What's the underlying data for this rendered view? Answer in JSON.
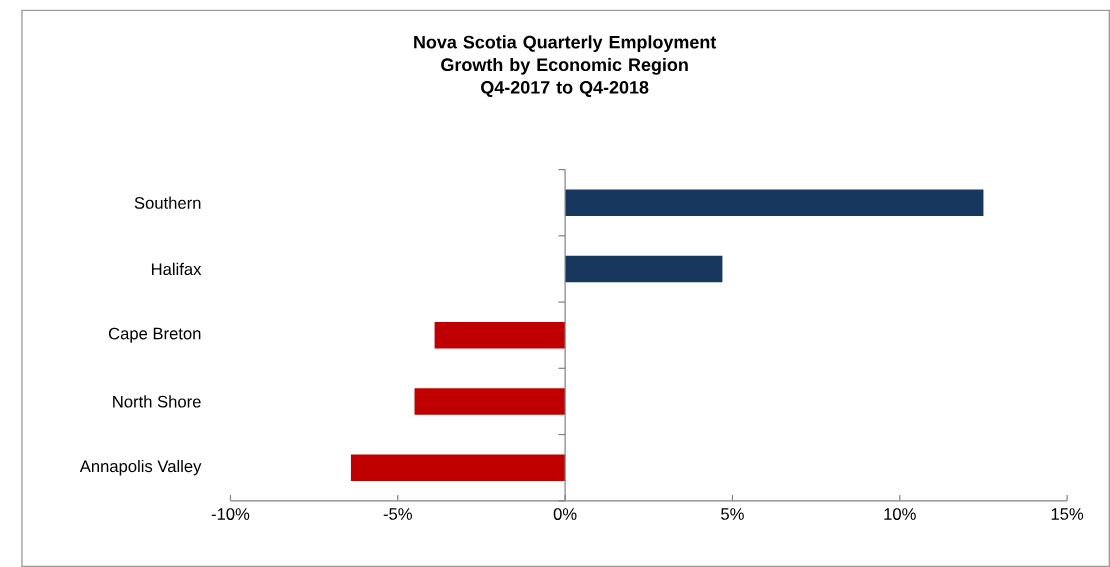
{
  "chart_data": {
    "type": "bar",
    "orientation": "horizontal",
    "title": "Nova Scotia Quarterly Employment Growth by Economic Region",
    "subtitle": "Q4-2017 to Q4-2018",
    "categories": [
      "Southern",
      "Halifax",
      "Cape Breton",
      "North Shore",
      "Annapolis Valley"
    ],
    "values": [
      12.5,
      4.7,
      -3.9,
      -4.5,
      -6.4
    ],
    "colors": [
      "#17375e",
      "#17375e",
      "#c00000",
      "#c00000",
      "#c00000"
    ],
    "xlim": [
      -10,
      15
    ],
    "xticks": [
      {
        "value": -10,
        "label": "-10%"
      },
      {
        "value": -5,
        "label": "-5%"
      },
      {
        "value": 0,
        "label": "0%"
      },
      {
        "value": 5,
        "label": "5%"
      },
      {
        "value": 10,
        "label": "10%"
      },
      {
        "value": 15,
        "label": "15%"
      }
    ],
    "line_style": "solid"
  }
}
